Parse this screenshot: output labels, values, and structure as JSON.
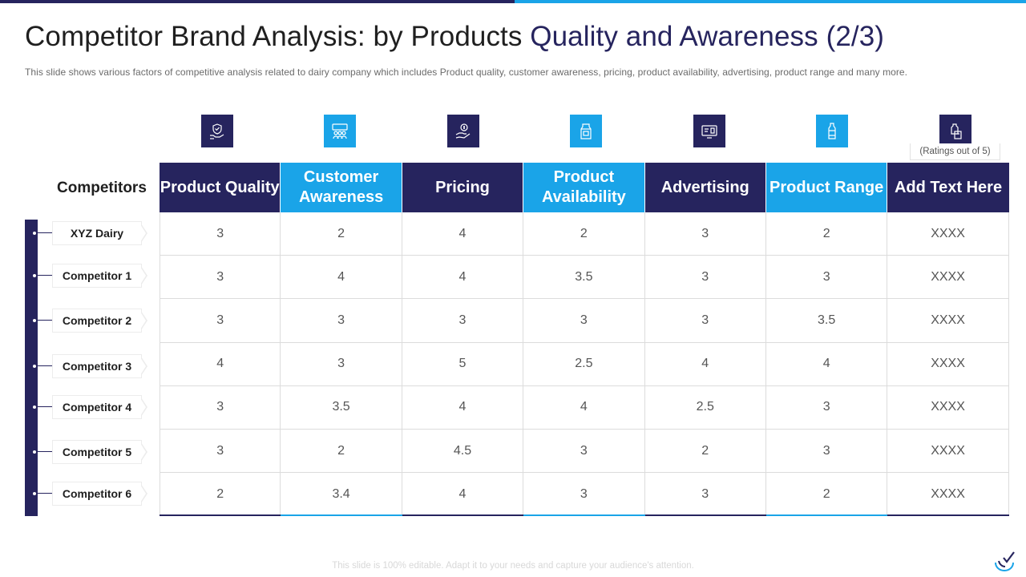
{
  "colors": {
    "dark": "#26245e",
    "light": "#1aa4e8"
  },
  "header": {
    "title_part1": "Competitor Brand Analysis: by Products ",
    "title_part2": "Quality and Awareness (2/3)",
    "subtitle": "This slide shows various factors of competitive analysis related to dairy company which includes Product quality, customer awareness, pricing, product availability, advertising, product range and many more."
  },
  "icons": [
    "quality-hand-icon",
    "customer-group-icon",
    "pricing-hand-coin-icon",
    "milk-carton-icon",
    "advertising-screen-icon",
    "milk-bottle-icon",
    "milk-bottle-box-icon"
  ],
  "ratings_note": "(Ratings out of 5)",
  "competitors_heading": "Competitors",
  "columns": [
    "Product Quality",
    "Customer Awareness",
    "Pricing",
    "Product Availability",
    "Advertising",
    "Product Range",
    "Add Text Here"
  ],
  "rows": [
    {
      "name": "XYZ Dairy",
      "values": [
        "3",
        "2",
        "4",
        "2",
        "3",
        "2",
        "XXXX"
      ]
    },
    {
      "name": "Competitor 1",
      "values": [
        "3",
        "4",
        "4",
        "3.5",
        "3",
        "3",
        "XXXX"
      ]
    },
    {
      "name": "Competitor 2",
      "values": [
        "3",
        "3",
        "3",
        "3",
        "3",
        "3.5",
        "XXXX"
      ]
    },
    {
      "name": "Competitor 3",
      "values": [
        "4",
        "3",
        "5",
        "2.5",
        "4",
        "4",
        "XXXX"
      ]
    },
    {
      "name": "Competitor 4",
      "values": [
        "3",
        "3.5",
        "4",
        "4",
        "2.5",
        "3",
        "XXXX"
      ]
    },
    {
      "name": "Competitor 5",
      "values": [
        "3",
        "2",
        "4.5",
        "3",
        "2",
        "3",
        "XXXX"
      ]
    },
    {
      "name": "Competitor 6",
      "values": [
        "2",
        "3.4",
        "4",
        "3",
        "3",
        "2",
        "XXXX"
      ]
    }
  ],
  "footer": "This slide is 100% editable. Adapt it to your needs and capture your audience's attention."
}
